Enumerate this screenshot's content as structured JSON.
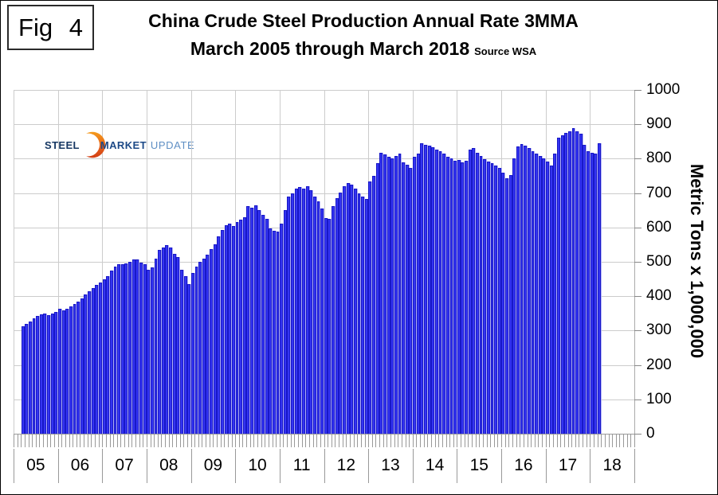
{
  "figure_label": "Fig 4",
  "title": {
    "line1": "China Crude Steel Production Annual Rate 3MMA",
    "line2": "March 2005 through March 2018",
    "source": "Source WSA"
  },
  "logo": {
    "word1": "STEEL",
    "word2": "MARKET",
    "word3": "UPDATE"
  },
  "colors": {
    "bar_fill": "#3434f2",
    "bar_border": "#1818c6",
    "bar_gap": "#b3b3f9",
    "gridline": "#cccccc",
    "axis_line": "#aaaaaa",
    "tick": "#999999",
    "logo_navy": "#173863",
    "logo_blue": "#1d4a87",
    "logo_light_blue": "#5f8fc4",
    "logo_orange_top": "#f59c1c",
    "logo_orange_bottom": "#d23f16"
  },
  "chart_data": {
    "type": "bar",
    "title": "China Crude Steel Production Annual Rate 3MMA",
    "subtitle": "March 2005 through March 2018",
    "source": "Source WSA",
    "xlabel": "",
    "ylabel": "Metric Tons x 1,000,000",
    "ylim": [
      0,
      1000
    ],
    "y_ticks": [
      0,
      100,
      200,
      300,
      400,
      500,
      600,
      700,
      800,
      900,
      1000
    ],
    "x_tick_labels": [
      "05",
      "06",
      "07",
      "08",
      "09",
      "10",
      "11",
      "12",
      "13",
      "14",
      "15",
      "16",
      "17",
      "18"
    ],
    "frequency": "monthly",
    "x_start": "2005-03",
    "x_end": "2018-03",
    "grid": true,
    "legend": false,
    "values": [
      312,
      319,
      327,
      336,
      343,
      347,
      350,
      346,
      350,
      354,
      364,
      358,
      363,
      370,
      377,
      385,
      394,
      404,
      414,
      424,
      432,
      440,
      449,
      458,
      475,
      486,
      492,
      493,
      495,
      501,
      507,
      506,
      497,
      492,
      478,
      484,
      510,
      535,
      542,
      548,
      542,
      523,
      513,
      478,
      459,
      436,
      467,
      486,
      500,
      510,
      521,
      538,
      552,
      573,
      593,
      607,
      610,
      604,
      616,
      622,
      630,
      662,
      658,
      665,
      651,
      637,
      624,
      597,
      591,
      587,
      610,
      650,
      690,
      700,
      712,
      718,
      714,
      719,
      708,
      690,
      675,
      655,
      628,
      626,
      663,
      686,
      702,
      721,
      729,
      725,
      712,
      700,
      690,
      684,
      733,
      750,
      787,
      818,
      812,
      806,
      800,
      808,
      814,
      790,
      782,
      772,
      806,
      814,
      845,
      841,
      838,
      834,
      827,
      822,
      814,
      806,
      801,
      795,
      797,
      789,
      793,
      826,
      830,
      818,
      807,
      799,
      791,
      786,
      779,
      773,
      760,
      744,
      752,
      800,
      835,
      843,
      838,
      830,
      822,
      815,
      808,
      800,
      791,
      779,
      814,
      861,
      869,
      876,
      880,
      888,
      880,
      872,
      841,
      822,
      818,
      814,
      845
    ]
  }
}
